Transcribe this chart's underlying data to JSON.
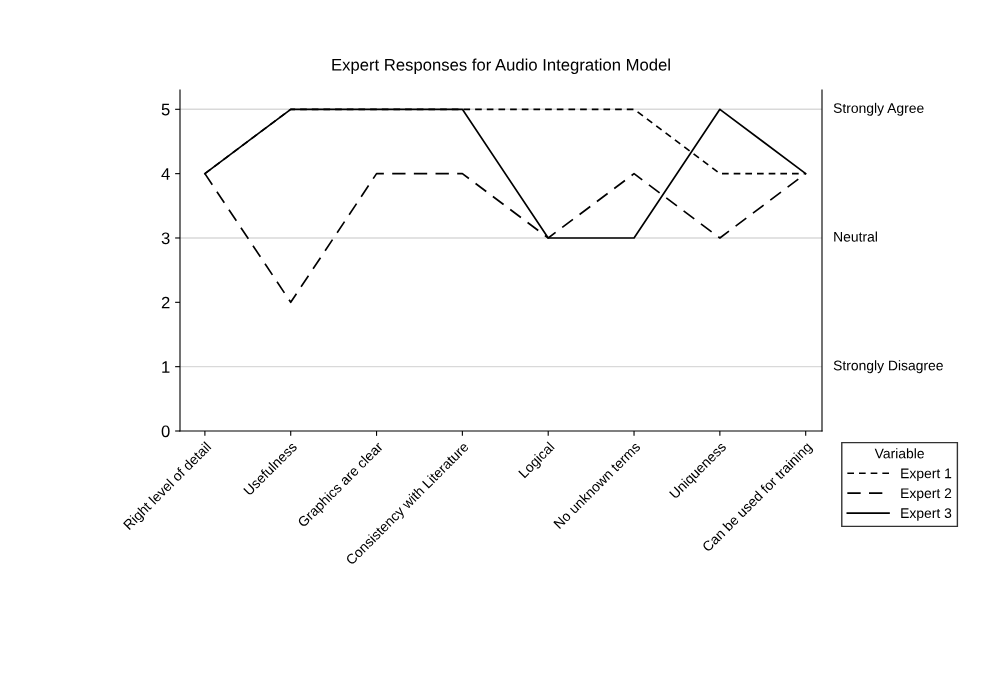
{
  "chart_data": {
    "type": "line",
    "title": "Expert Responses for Audio Integration Model",
    "categories": [
      "Right level of detail",
      "Usefulness",
      "Graphics are clear",
      "Consistency with Literature",
      "Logical",
      "No unknown terms",
      "Uniqueness",
      "Can be used for training"
    ],
    "series": [
      {
        "name": "Expert 1",
        "color": "#000000",
        "line_style": "dotted",
        "values": [
          4,
          5,
          5,
          5,
          5,
          5,
          4,
          4
        ]
      },
      {
        "name": "Expert 2",
        "color": "#000000",
        "line_style": "dashed",
        "values": [
          4,
          2,
          4,
          4,
          3,
          4,
          3,
          4
        ]
      },
      {
        "name": "Expert 3",
        "color": "#000000",
        "line_style": "solid",
        "values": [
          4,
          5,
          5,
          5,
          3,
          3,
          5,
          4
        ]
      }
    ],
    "ylim": [
      0,
      5.3
    ],
    "yticks": [
      0,
      1,
      2,
      3,
      4,
      5
    ],
    "ref_lines": [
      {
        "axis": "y",
        "value": 5,
        "label": "Strongly Agree",
        "color": "#d9d9d9"
      },
      {
        "axis": "y",
        "value": 3,
        "label": "Neutral",
        "color": "#d9d9d9"
      },
      {
        "axis": "y",
        "value": 1,
        "label": "Strongly Disagree",
        "color": "#d9d9d9"
      }
    ],
    "legend_title": "Variable",
    "legend": "bottom right",
    "grid": false,
    "marker": "none"
  }
}
